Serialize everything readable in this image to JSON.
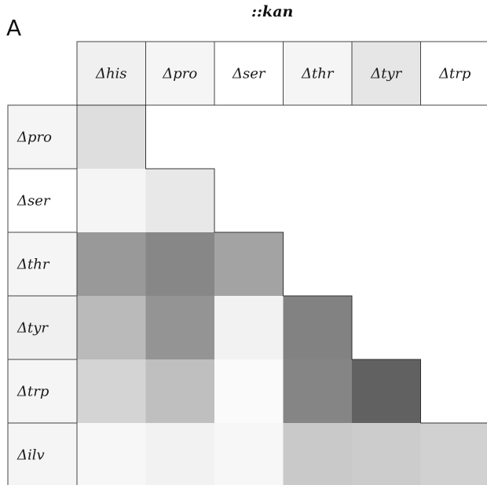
{
  "panel_label": "A",
  "chart_data": {
    "type": "heatmap",
    "title": "::kan",
    "x_categories": [
      "Δhis",
      "Δpro",
      "Δser",
      "Δthr",
      "Δtyr",
      "Δtrp"
    ],
    "y_categories": [
      "Δpro",
      "Δser",
      "Δthr",
      "Δtyr",
      "Δtrp",
      "Δilv"
    ],
    "x_header_shading": [
      0.06,
      0.04,
      0.0,
      0.04,
      0.1,
      0.0
    ],
    "y_header_shading": [
      0.04,
      0.0,
      0.04,
      0.06,
      0.04,
      0.04
    ],
    "layout": "lower-triangle",
    "color_scale": "white-to-black",
    "grid": false,
    "legend": "none",
    "values": [
      [
        0.13,
        null,
        null,
        null,
        null,
        null
      ],
      [
        0.04,
        0.09,
        null,
        null,
        null,
        null
      ],
      [
        0.4,
        0.47,
        0.36,
        null,
        null,
        null
      ],
      [
        0.27,
        0.42,
        0.05,
        0.49,
        null,
        null
      ],
      [
        0.17,
        0.25,
        0.02,
        0.48,
        0.62,
        null
      ],
      [
        0.03,
        0.05,
        0.03,
        0.21,
        0.2,
        0.18
      ]
    ]
  }
}
